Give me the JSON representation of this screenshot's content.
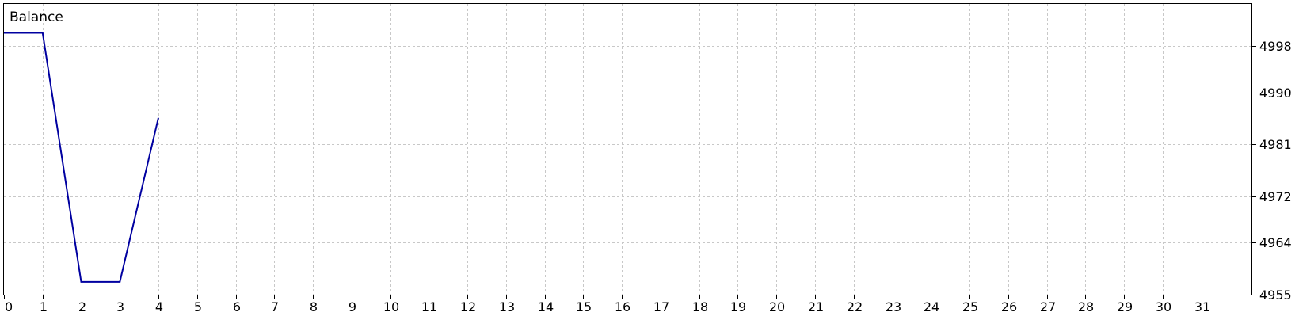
{
  "chart_data": {
    "type": "line",
    "title": "Balance",
    "xlabel": "",
    "ylabel": "",
    "x_ticks": [
      0,
      1,
      2,
      3,
      4,
      5,
      6,
      7,
      8,
      9,
      10,
      11,
      12,
      13,
      14,
      15,
      16,
      17,
      18,
      19,
      20,
      21,
      22,
      23,
      24,
      25,
      26,
      27,
      28,
      29,
      30,
      31
    ],
    "x_range": [
      0,
      32.3
    ],
    "y_ticks": [
      4955,
      4964,
      4972,
      4981,
      4990,
      4998
    ],
    "y_range": [
      4955,
      5005.3
    ],
    "grid": true,
    "legend": "none",
    "series": [
      {
        "x": [
          0,
          1,
          2,
          3,
          4
        ],
        "y": [
          5000.3,
          5000.3,
          4957.2,
          4957.2,
          4985.6
        ],
        "color": "#0000a0"
      }
    ]
  }
}
